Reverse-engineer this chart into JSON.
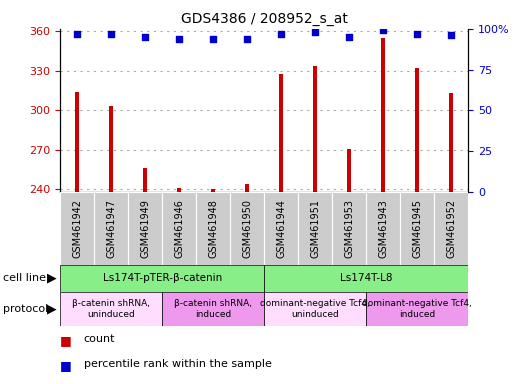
{
  "title": "GDS4386 / 208952_s_at",
  "samples": [
    "GSM461942",
    "GSM461947",
    "GSM461949",
    "GSM461946",
    "GSM461948",
    "GSM461950",
    "GSM461944",
    "GSM461951",
    "GSM461953",
    "GSM461943",
    "GSM461945",
    "GSM461952"
  ],
  "counts": [
    314,
    303,
    256,
    241,
    240,
    244,
    328,
    334,
    271,
    355,
    332,
    313
  ],
  "percentile_ranks": [
    97,
    97,
    95,
    94,
    94,
    94,
    97,
    98,
    95,
    99,
    97,
    96
  ],
  "ylim_left": [
    238,
    362
  ],
  "ylim_right": [
    0,
    100
  ],
  "yticks_left": [
    240,
    270,
    300,
    330,
    360
  ],
  "ytick_right_vals": [
    0,
    25,
    50,
    75,
    100
  ],
  "ytick_right_labels": [
    "0",
    "25",
    "50",
    "75",
    "100%"
  ],
  "bar_color": "#cc0000",
  "dot_color": "#0000cc",
  "grid_color": "#aaaaaa",
  "cell_line_groups": [
    {
      "label": "Ls174T-pTER-β-catenin",
      "start": 0,
      "end": 6,
      "color": "#88ee88"
    },
    {
      "label": "Ls174T-L8",
      "start": 6,
      "end": 12,
      "color": "#88ee88"
    }
  ],
  "protocol_groups": [
    {
      "label": "β-catenin shRNA,\nuninduced",
      "start": 0,
      "end": 3,
      "color": "#ffddff"
    },
    {
      "label": "β-catenin shRNA,\ninduced",
      "start": 3,
      "end": 6,
      "color": "#ee99ee"
    },
    {
      "label": "dominant-negative Tcf4,\nuninduced",
      "start": 6,
      "end": 9,
      "color": "#ffddff"
    },
    {
      "label": "dominant-negative Tcf4,\ninduced",
      "start": 9,
      "end": 12,
      "color": "#ee99ee"
    }
  ],
  "cell_line_label": "cell line",
  "protocol_label": "protocol",
  "legend_count": "count",
  "legend_percentile": "percentile rank within the sample",
  "tick_label_color_left": "#cc0000",
  "tick_label_color_right": "#0000cc",
  "xtick_bg": "#cccccc",
  "bar_width": 0.12
}
